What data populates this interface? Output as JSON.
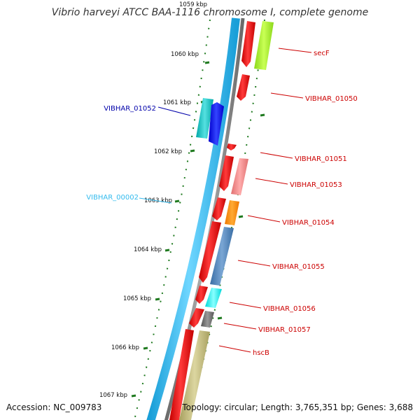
{
  "title": "Vibrio harveyi ATCC BAA-1116 chromosome I, complete genome",
  "footer": {
    "accession": "Accession: NC_009783",
    "stats": "Topology: circular; Length: 3,765,351 bp; Genes: 3,688"
  },
  "scale": {
    "unit": "kbp",
    "ticks": [
      "1059 kbp",
      "1060 kbp",
      "1061 kbp",
      "1062 kbp",
      "1063 kbp",
      "1064 kbp",
      "1065 kbp",
      "1066 kbp",
      "1067 kbp"
    ]
  },
  "colors": {
    "backbone_outer": "#33c0f0",
    "backbone_inner": "#8a8a8a",
    "forward_cds": "#ee1111",
    "tick_green": "#1f7a1f",
    "label_red": "#cc0000",
    "label_blue": "#0000aa",
    "label_cyan": "#33bbee"
  },
  "genes": [
    {
      "name": "secF",
      "label_color": "#cc0000",
      "feature_color": "#a8f020"
    },
    {
      "name": "VIBHAR_01050",
      "label_color": "#cc0000",
      "feature_color": "#ee1111"
    },
    {
      "name": "VIBHAR_01052",
      "label_color": "#0000aa",
      "feature_color": "#0000ee"
    },
    {
      "name": "VIBHAR_01051",
      "label_color": "#cc0000",
      "feature_color": "#ee1111"
    },
    {
      "name": "VIBHAR_01053",
      "label_color": "#cc0000",
      "feature_color": "#f08888"
    },
    {
      "name": "VIBHAR_00002",
      "label_color": "#33bbee",
      "feature_color": "#11bbbb"
    },
    {
      "name": "VIBHAR_01054",
      "label_color": "#cc0000",
      "feature_color": "#ff8800"
    },
    {
      "name": "VIBHAR_01055",
      "label_color": "#cc0000",
      "feature_color": "#4a7fb5"
    },
    {
      "name": "VIBHAR_01056",
      "label_color": "#cc0000",
      "feature_color": "#00eeee"
    },
    {
      "name": "VIBHAR_01057",
      "label_color": "#cc0000",
      "feature_color": "#666666"
    },
    {
      "name": "hscB",
      "label_color": "#cc0000",
      "feature_color": "#b8b070"
    }
  ]
}
